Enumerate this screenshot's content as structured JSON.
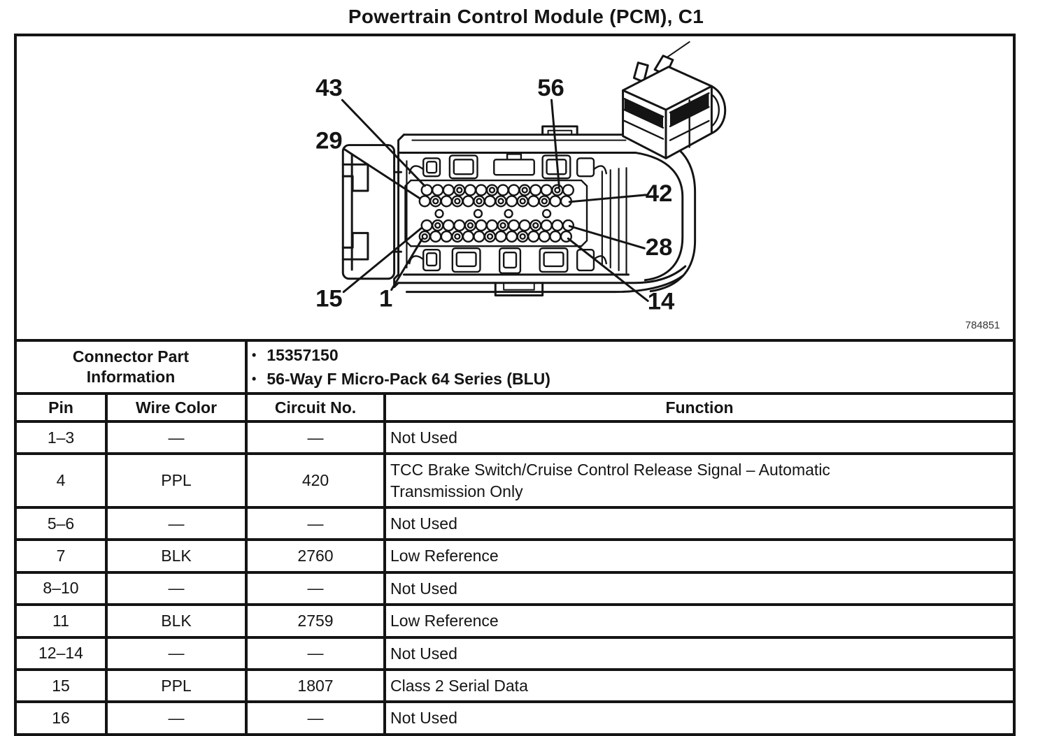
{
  "title": "Powertrain Control Module (PCM), C1",
  "diagram": {
    "figure_number": "784851",
    "callouts": [
      "43",
      "29",
      "56",
      "42",
      "28",
      "14",
      "15",
      "1"
    ]
  },
  "connector_info": {
    "header": "Connector Part Information",
    "bullets": [
      "15357150",
      "56-Way F Micro-Pack 64 Series (BLU)"
    ],
    "bullet_glyph": "•"
  },
  "table": {
    "columns": [
      "Pin",
      "Wire Color",
      "Circuit No.",
      "Function"
    ],
    "rows": [
      {
        "pin": "1–3",
        "wire_color": "—",
        "circuit_no": "—",
        "function": "Not Used"
      },
      {
        "pin": "4",
        "wire_color": "PPL",
        "circuit_no": "420",
        "function": "TCC Brake Switch/Cruise Control Release Signal – Automatic Transmission Only"
      },
      {
        "pin": "5–6",
        "wire_color": "—",
        "circuit_no": "—",
        "function": "Not Used"
      },
      {
        "pin": "7",
        "wire_color": "BLK",
        "circuit_no": "2760",
        "function": "Low Reference"
      },
      {
        "pin": "8–10",
        "wire_color": "—",
        "circuit_no": "—",
        "function": "Not Used"
      },
      {
        "pin": "11",
        "wire_color": "BLK",
        "circuit_no": "2759",
        "function": "Low Reference"
      },
      {
        "pin": "12–14",
        "wire_color": "—",
        "circuit_no": "—",
        "function": "Not Used"
      },
      {
        "pin": "15",
        "wire_color": "PPL",
        "circuit_no": "1807",
        "function": "Class 2 Serial Data"
      },
      {
        "pin": "16",
        "wire_color": "—",
        "circuit_no": "—",
        "function": "Not Used"
      }
    ]
  }
}
